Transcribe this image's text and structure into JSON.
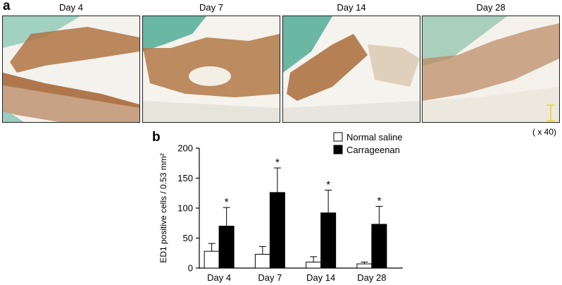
{
  "panel_a": {
    "letter": "a",
    "images": [
      {
        "title": "Day 4"
      },
      {
        "title": "Day 7"
      },
      {
        "title": "Day 14"
      },
      {
        "title": "Day 28"
      }
    ],
    "magnification": "( x 40)"
  },
  "panel_b": {
    "letter": "b"
  },
  "colors": {
    "tissue_brown": "#a8693b",
    "tissue_green": "#6ab7a4",
    "background_pale": "#f3f1ea",
    "bar_black": "#000000",
    "bar_white": "#ffffff"
  },
  "chart_data": {
    "type": "bar",
    "categories": [
      "Day 4",
      "Day 7",
      "Day 14",
      "Day 28"
    ],
    "ylabel": "ED1 positive cells / 0.53 mm²",
    "ylim": [
      0,
      200
    ],
    "yticks": [
      0,
      50,
      100,
      150,
      200
    ],
    "legend_position": "top-right",
    "series": [
      {
        "name": "Normal saline",
        "fill": "#ffffff",
        "values": [
          28,
          23,
          10,
          7
        ],
        "errors": [
          13,
          13,
          9,
          3
        ]
      },
      {
        "name": "Carrageenan",
        "fill": "#000000",
        "values": [
          70,
          126,
          92,
          73
        ],
        "errors": [
          31,
          41,
          38,
          30
        ]
      }
    ],
    "significance": [
      "*",
      "*",
      "*",
      "*"
    ]
  }
}
